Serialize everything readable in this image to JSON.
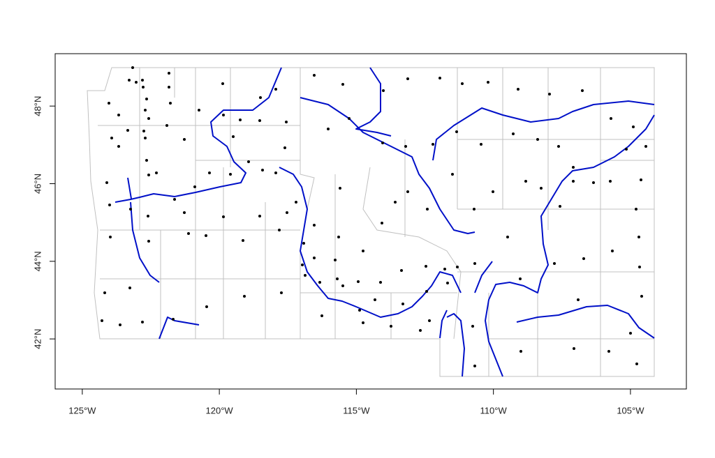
{
  "map": {
    "xlim": [
      -125.99,
      -102.96
    ],
    "ylim": [
      40.71,
      49.35
    ],
    "xticks": [
      {
        "value": -125,
        "label": "125°W"
      },
      {
        "value": -120,
        "label": "120°W"
      },
      {
        "value": -115,
        "label": "115°W"
      },
      {
        "value": -110,
        "label": "110°W"
      },
      {
        "value": -105,
        "label": "105°W"
      }
    ],
    "yticks": [
      {
        "value": 42,
        "label": "42°N"
      },
      {
        "value": 44,
        "label": "44°N"
      },
      {
        "value": 46,
        "label": "46°N"
      },
      {
        "value": 48,
        "label": "48°N"
      }
    ]
  }
}
